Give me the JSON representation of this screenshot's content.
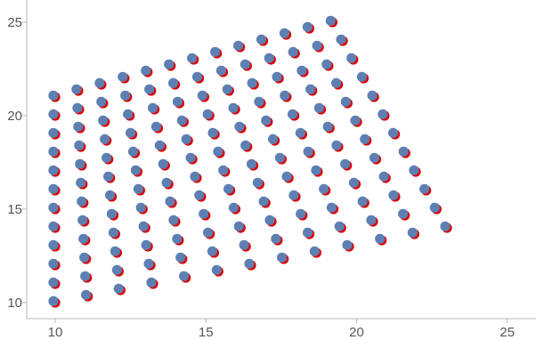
{
  "chart_data": {
    "type": "scatter",
    "title": "",
    "xlabel": "",
    "ylabel": "",
    "xlim": [
      9.2,
      26
    ],
    "ylim": [
      9.4,
      25.6
    ],
    "x_ticks": [
      10,
      15,
      20,
      25
    ],
    "y_ticks": [
      10,
      15,
      20,
      25
    ],
    "x_tick_labels": [
      "10",
      "15",
      "20",
      "25"
    ],
    "y_tick_labels": [
      "10",
      "15",
      "20",
      "25"
    ],
    "grid": false,
    "legend": "none",
    "grid_rows": 12,
    "grid_cols": 13,
    "series": [
      {
        "color": "#dd0000",
        "corners": {
          "bottom_left": [
            10.0,
            10.0
          ],
          "bottom_right": [
            23.0,
            14.0
          ],
          "top_left": [
            10.0,
            21.0
          ],
          "top_right": [
            19.2,
            25.0
          ]
        }
      },
      {
        "color": "#5d7fb2",
        "corners": {
          "bottom_left": [
            10.0,
            10.0
          ],
          "bottom_right": [
            23.0,
            14.0
          ],
          "top_left": [
            10.0,
            21.0
          ],
          "top_right": [
            19.2,
            25.0
          ]
        },
        "drawn_offset": [
          -0.06,
          0.08
        ]
      }
    ]
  }
}
